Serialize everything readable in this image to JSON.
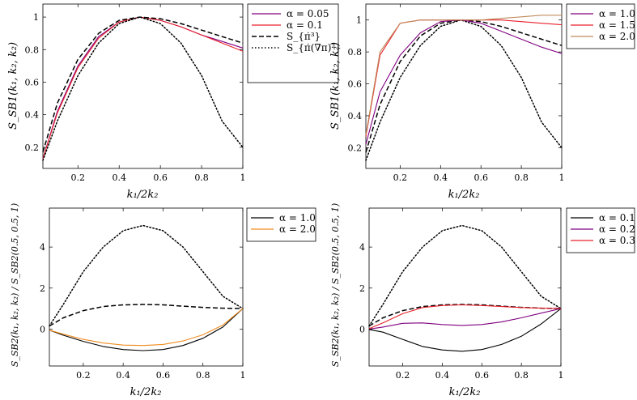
{
  "chart_data": [
    {
      "type": "line",
      "xlabel": "k₁/2k₂",
      "ylabel": "S_SB1(k₁, k₂, k₂)",
      "xlim": [
        0.03,
        1.0
      ],
      "ylim": [
        0.07,
        1.08
      ],
      "xticks": [
        0.2,
        0.4,
        0.6,
        0.8,
        1.0
      ],
      "xtick_labels": [
        "0.2",
        "0.4",
        "0.6",
        "0.8",
        "1"
      ],
      "yticks": [
        0.2,
        0.4,
        0.6,
        0.8,
        1.0
      ],
      "ytick_labels": [
        "0.2",
        "0.4",
        "0.6",
        "0.8",
        "1"
      ],
      "legend_position": "outside-right-top",
      "x": [
        0.03,
        0.1,
        0.2,
        0.3,
        0.4,
        0.5,
        0.6,
        0.7,
        0.8,
        0.9,
        1.0
      ],
      "series": [
        {
          "name": "α = 0.05",
          "color": "#800080",
          "style": "solid",
          "values": [
            0.13,
            0.42,
            0.7,
            0.88,
            0.97,
            1.0,
            0.98,
            0.94,
            0.89,
            0.85,
            0.81
          ]
        },
        {
          "name": "α = 0.1",
          "color": "#e8202a",
          "style": "solid",
          "values": [
            0.13,
            0.41,
            0.69,
            0.87,
            0.97,
            1.0,
            0.98,
            0.94,
            0.89,
            0.84,
            0.79
          ]
        },
        {
          "name": "S_{π̇³}",
          "color": "#000000",
          "style": "dashed",
          "values": [
            0.17,
            0.47,
            0.74,
            0.9,
            0.98,
            1.0,
            0.99,
            0.96,
            0.92,
            0.88,
            0.84
          ]
        },
        {
          "name": "S_{π̇(∇π)²}",
          "color": "#000000",
          "style": "dotted",
          "values": [
            0.12,
            0.36,
            0.64,
            0.84,
            0.96,
            1.0,
            0.96,
            0.84,
            0.64,
            0.36,
            0.2
          ]
        }
      ]
    },
    {
      "type": "line",
      "xlabel": "k₁/2k₂",
      "ylabel": "S_SB1(k₁, k₂, k₂)",
      "xlim": [
        0.03,
        1.0
      ],
      "ylim": [
        0.07,
        1.1
      ],
      "xticks": [
        0.2,
        0.4,
        0.6,
        0.8,
        1.0
      ],
      "xtick_labels": [
        "0.2",
        "0.4",
        "0.6",
        "0.8",
        "1"
      ],
      "yticks": [
        0.2,
        0.4,
        0.6,
        0.8,
        1.0
      ],
      "ytick_labels": [
        "0.2",
        "0.4",
        "0.6",
        "0.8",
        "1"
      ],
      "legend_position": "top-right",
      "x": [
        0.03,
        0.1,
        0.2,
        0.3,
        0.4,
        0.5,
        0.6,
        0.7,
        0.8,
        0.9,
        1.0
      ],
      "series": [
        {
          "name": "α = 1.0",
          "color": "#800080",
          "style": "solid",
          "values": [
            0.22,
            0.55,
            0.78,
            0.92,
            0.99,
            1.0,
            0.98,
            0.93,
            0.88,
            0.83,
            0.79
          ]
        },
        {
          "name": "α = 1.5",
          "color": "#e8202a",
          "style": "solid",
          "values": [
            0.27,
            0.78,
            0.98,
            1.0,
            1.0,
            1.0,
            1.0,
            1.0,
            0.99,
            0.98,
            0.97
          ]
        },
        {
          "name": "α = 2.0",
          "color": "#c08b5c",
          "style": "solid",
          "values": [
            0.28,
            0.8,
            0.98,
            1.0,
            1.0,
            1.0,
            1.0,
            1.01,
            1.02,
            1.03,
            1.03
          ]
        },
        {
          "name": "",
          "color": "#000000",
          "style": "dashed",
          "values": [
            0.17,
            0.47,
            0.74,
            0.9,
            0.98,
            1.0,
            0.99,
            0.96,
            0.92,
            0.88,
            0.84
          ]
        },
        {
          "name": "",
          "color": "#000000",
          "style": "dotted",
          "values": [
            0.12,
            0.36,
            0.64,
            0.84,
            0.96,
            1.0,
            0.96,
            0.84,
            0.64,
            0.36,
            0.2
          ]
        }
      ]
    },
    {
      "type": "line",
      "xlabel": "k₁/2k₂",
      "ylabel": "S_SB2(k₁, k₂, k₂) / S_SB2(0.5, 0.5, 1)",
      "xlim": [
        0.03,
        1.0
      ],
      "ylim": [
        -1.8,
        5.9
      ],
      "xticks": [
        0.2,
        0.4,
        0.6,
        0.8,
        1.0
      ],
      "xtick_labels": [
        "0.2",
        "0.4",
        "0.6",
        "0.8",
        "1"
      ],
      "yticks": [
        0,
        2,
        4
      ],
      "ytick_labels": [
        "0",
        "2",
        "4"
      ],
      "legend_position": "outside-right-top",
      "x": [
        0.03,
        0.1,
        0.2,
        0.3,
        0.4,
        0.5,
        0.6,
        0.7,
        0.8,
        0.9,
        1.0
      ],
      "series": [
        {
          "name": "α = 1.0",
          "color": "#000000",
          "style": "solid",
          "values": [
            -0.05,
            -0.3,
            -0.6,
            -0.85,
            -1.0,
            -1.05,
            -1.0,
            -0.8,
            -0.45,
            0.1,
            1.0
          ]
        },
        {
          "name": "α = 2.0",
          "color": "#f08c1e",
          "style": "solid",
          "values": [
            -0.05,
            -0.25,
            -0.5,
            -0.68,
            -0.78,
            -0.8,
            -0.75,
            -0.58,
            -0.28,
            0.2,
            1.0
          ]
        },
        {
          "name": "",
          "color": "#000000",
          "style": "dashed",
          "values": [
            0.15,
            0.55,
            0.9,
            1.1,
            1.18,
            1.2,
            1.18,
            1.12,
            1.06,
            1.02,
            1.0
          ]
        },
        {
          "name": "",
          "color": "#000000",
          "style": "dotted",
          "values": [
            0.15,
            1.2,
            2.8,
            4.0,
            4.8,
            5.05,
            4.8,
            4.0,
            2.8,
            1.6,
            1.0
          ]
        }
      ]
    },
    {
      "type": "line",
      "xlabel": "k₁/2k₂",
      "ylabel": "S_SB2(k₁, k₂, k₂) / S_SB2(0.5, 0.5, 1)",
      "xlim": [
        0.03,
        1.0
      ],
      "ylim": [
        -1.8,
        5.9
      ],
      "xticks": [
        0.2,
        0.4,
        0.6,
        0.8,
        1.0
      ],
      "xtick_labels": [
        "0.2",
        "0.4",
        "0.6",
        "0.8",
        "1"
      ],
      "yticks": [
        0,
        2,
        4
      ],
      "ytick_labels": [
        "0",
        "2",
        "4"
      ],
      "legend_position": "outside-right-top",
      "x": [
        0.03,
        0.1,
        0.2,
        0.3,
        0.4,
        0.5,
        0.6,
        0.7,
        0.8,
        0.9,
        1.0
      ],
      "series": [
        {
          "name": "α = 0.1",
          "color": "#000000",
          "style": "solid",
          "values": [
            -0.02,
            -0.15,
            -0.5,
            -0.85,
            -1.02,
            -1.08,
            -1.0,
            -0.75,
            -0.35,
            0.25,
            1.0
          ]
        },
        {
          "name": "α = 0.2",
          "color": "#800080",
          "style": "solid",
          "values": [
            0.0,
            0.1,
            0.28,
            0.3,
            0.22,
            0.18,
            0.22,
            0.35,
            0.55,
            0.78,
            1.0
          ]
        },
        {
          "name": "α = 0.3",
          "color": "#e8202a",
          "style": "solid",
          "values": [
            0.02,
            0.3,
            0.75,
            1.05,
            1.15,
            1.18,
            1.15,
            1.1,
            1.05,
            1.02,
            1.0
          ]
        },
        {
          "name": "",
          "color": "#000000",
          "style": "dashed",
          "values": [
            0.15,
            0.55,
            0.9,
            1.1,
            1.18,
            1.2,
            1.18,
            1.12,
            1.06,
            1.02,
            1.0
          ]
        },
        {
          "name": "",
          "color": "#000000",
          "style": "dotted",
          "values": [
            0.15,
            1.2,
            2.8,
            4.0,
            4.8,
            5.05,
            4.8,
            4.0,
            2.8,
            1.6,
            1.0
          ]
        }
      ]
    }
  ]
}
